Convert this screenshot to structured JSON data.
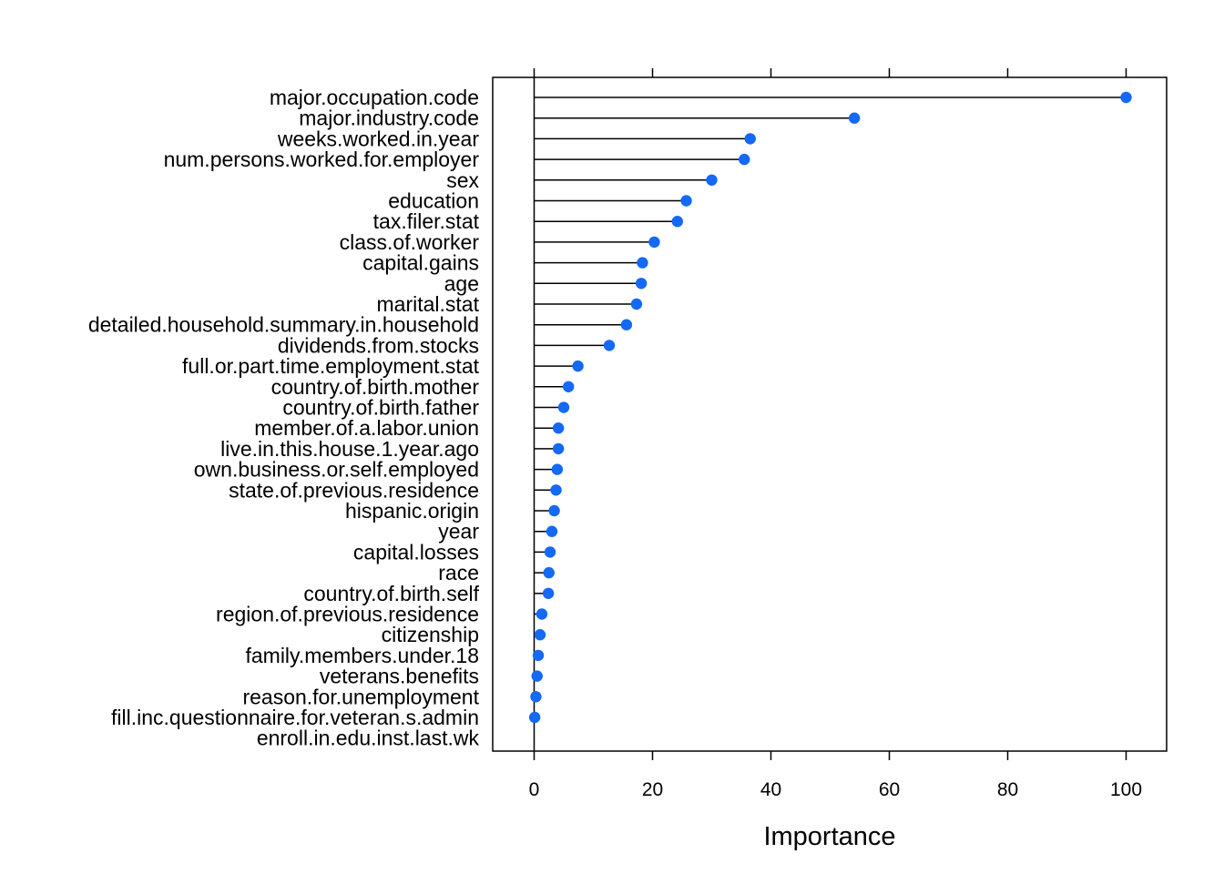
{
  "chart_data": {
    "type": "dot-lollipop",
    "xlabel": "Importance",
    "xlim": [
      -7,
      107
    ],
    "xticks": [
      0,
      20,
      40,
      60,
      80,
      100
    ],
    "point_color": "#1469F5",
    "line_color": "#000000",
    "categories": [
      "major.occupation.code",
      "major.industry.code",
      "weeks.worked.in.year",
      "num.persons.worked.for.employer",
      "sex",
      "education",
      "tax.filer.stat",
      "class.of.worker",
      "capital.gains",
      "age",
      "marital.stat",
      "detailed.household.summary.in.household",
      "dividends.from.stocks",
      "full.or.part.time.employment.stat",
      "country.of.birth.mother",
      "country.of.birth.father",
      "member.of.a.labor.union",
      "live.in.this.house.1.year.ago",
      "own.business.or.self.employed",
      "state.of.previous.residence",
      "hispanic.origin",
      "year",
      "capital.losses",
      "race",
      "country.of.birth.self",
      "region.of.previous.residence",
      "citizenship",
      "family.members.under.18",
      "veterans.benefits",
      "reason.for.unemployment",
      "fill.inc.questionnaire.for.veteran.s.admin",
      "enroll.in.edu.inst.last.wk"
    ],
    "values": [
      100,
      54.1,
      36.5,
      35.5,
      30.0,
      25.7,
      24.2,
      20.3,
      18.3,
      18.1,
      17.3,
      15.6,
      12.7,
      7.4,
      5.8,
      5.0,
      4.1,
      4.1,
      3.9,
      3.7,
      3.4,
      3.0,
      2.7,
      2.5,
      2.4,
      1.3,
      1.0,
      0.7,
      0.5,
      0.3,
      0.1,
      null
    ]
  }
}
